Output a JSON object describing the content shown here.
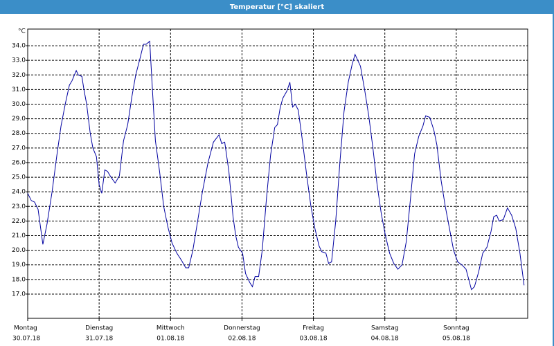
{
  "chart_data": {
    "type": "line",
    "title": "Temperatur [°C] skaliert",
    "y_unit": "°C",
    "x": [
      0,
      1.2,
      2.3,
      3.5,
      5.1,
      6.5,
      8.2,
      9.8,
      11.2,
      12.6,
      14,
      14.9,
      16.3,
      17,
      18.2,
      18.9,
      19.8,
      21,
      21.9,
      23.1,
      24,
      24.9,
      25.9,
      26.8,
      28,
      29.4,
      30.8,
      32.2,
      33.6,
      35,
      36.3,
      37.7,
      38.9,
      39.8,
      41,
      41.9,
      42.9,
      44.3,
      45.7,
      47.1,
      48.5,
      50.1,
      51.7,
      53.1,
      54.1,
      55.5,
      57.1,
      58.7,
      60.6,
      62.4,
      64.3,
      65.2,
      66.2,
      67.6,
      69,
      69.9,
      70.8,
      72.2,
      73.2,
      74.6,
      75.5,
      76.4,
      77.6,
      78.8,
      80.2,
      81.6,
      83,
      83.9,
      84.8,
      85.7,
      87.1,
      88.1,
      89,
      89.9,
      90.9,
      92.3,
      93.7,
      95.1,
      96.5,
      97.9,
      98.8,
      100.2,
      101.1,
      102.1,
      103.5,
      104.9,
      106.3,
      107.7,
      109,
      110,
      110.9,
      111.8,
      113.2,
      114.6,
      116,
      117.4,
      118.8,
      120.2,
      121.6,
      123,
      124.4,
      125.8,
      127.2,
      128.6,
      130,
      131.4,
      132.8,
      133.7,
      135.1,
      136.5,
      137.5,
      138.9,
      140.3,
      141.7,
      143.1,
      144.5,
      145.9,
      147.3,
      148.2,
      149.1,
      150.1,
      151.5,
      152.9,
      154.3,
      155.7,
      156.6,
      157.6,
      158.4,
      159.8,
      161.2,
      162.6,
      164,
      165.4,
      166.8
    ],
    "series": [
      {
        "name": "Temperatur",
        "color": "#0000a0",
        "values": [
          23.9,
          23.4,
          23.3,
          22.8,
          20.4,
          21.8,
          24,
          26.5,
          28.5,
          30,
          31.3,
          31.6,
          32.3,
          32,
          31.9,
          31,
          30,
          28,
          27,
          26.4,
          24.5,
          23.9,
          25.5,
          25.4,
          25,
          24.6,
          25.1,
          27.5,
          28.6,
          30.5,
          32,
          33.1,
          34.1,
          34.1,
          34.3,
          31,
          27.5,
          25.4,
          23,
          21.6,
          20.5,
          19.8,
          19.3,
          18.8,
          18.8,
          20,
          22,
          24,
          26,
          27.4,
          27.9,
          27.3,
          27.4,
          25.4,
          22.3,
          21,
          20.2,
          19.8,
          18.4,
          17.8,
          17.5,
          18.2,
          18.2,
          20,
          23.5,
          26.5,
          28.4,
          28.6,
          29.7,
          30.4,
          30.9,
          31.5,
          29.8,
          30,
          29.6,
          27.5,
          25.2,
          23.1,
          21.5,
          20.3,
          19.9,
          19.8,
          19.1,
          19.2,
          22,
          26,
          29.5,
          31.5,
          32.7,
          33.4,
          33,
          32.6,
          31,
          29.2,
          27,
          24.5,
          22.5,
          21,
          19.8,
          19.1,
          18.7,
          19,
          20.6,
          23.5,
          26.6,
          27.8,
          28.5,
          29.2,
          29.1,
          28.2,
          27.2,
          24.8,
          23,
          21.5,
          20,
          19.2,
          19,
          18.7,
          18,
          17.3,
          17.5,
          18.5,
          19.8,
          20.2,
          21.3,
          22.3,
          22.4,
          22,
          22.1,
          22.9,
          22.4,
          21.5,
          19.8,
          17.6
        ]
      }
    ],
    "xlim": [
      0,
      168
    ],
    "xticks": [
      {
        "value": 0,
        "label": "Montag"
      },
      {
        "value": 24,
        "label": "Dienstag"
      },
      {
        "value": 48,
        "label": "Mittwoch"
      },
      {
        "value": 72,
        "label": "Donnerstag"
      },
      {
        "value": 96,
        "label": "Freitag"
      },
      {
        "value": 120,
        "label": "Samstag"
      },
      {
        "value": 144,
        "label": "Sonntag"
      }
    ],
    "xtick_dates": [
      "30.07.18",
      "31.07.18",
      "01.08.18",
      "02.08.18",
      "03.08.18",
      "04.08.18",
      "05.08.18"
    ],
    "ylim": [
      15.34,
      35.14
    ],
    "yticks": [
      {
        "value": 17,
        "label": "17.0"
      },
      {
        "value": 18,
        "label": "18.0"
      },
      {
        "value": 19,
        "label": "19.0"
      },
      {
        "value": 20,
        "label": "20.0"
      },
      {
        "value": 21,
        "label": "21.0"
      },
      {
        "value": 22,
        "label": "22.0"
      },
      {
        "value": 23,
        "label": "23.0"
      },
      {
        "value": 24,
        "label": "24.0"
      },
      {
        "value": 25,
        "label": "25.0"
      },
      {
        "value": 26,
        "label": "26.0"
      },
      {
        "value": 27,
        "label": "27.0"
      },
      {
        "value": 28,
        "label": "28.0"
      },
      {
        "value": 29,
        "label": "29.0"
      },
      {
        "value": 30,
        "label": "30.0"
      },
      {
        "value": 31,
        "label": "31.0"
      },
      {
        "value": 32,
        "label": "32.0"
      },
      {
        "value": 33,
        "label": "33.0"
      },
      {
        "value": 34,
        "label": "34.0"
      }
    ],
    "grid": true
  }
}
